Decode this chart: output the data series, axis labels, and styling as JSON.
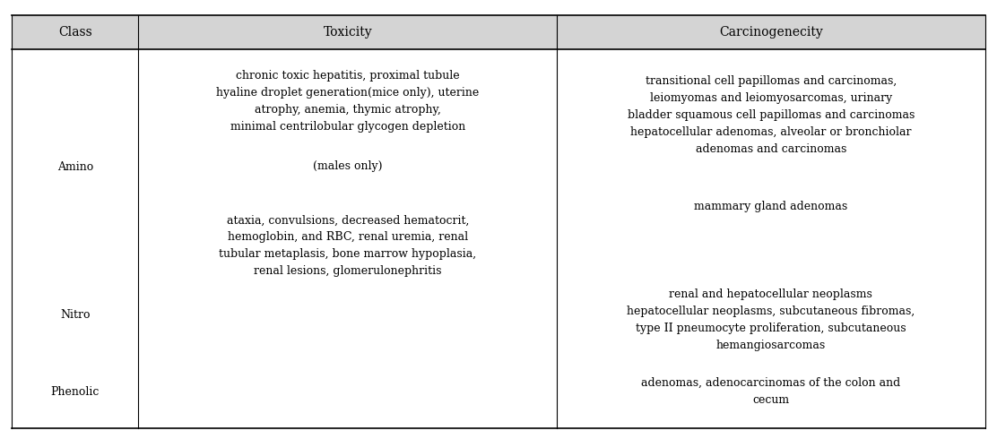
{
  "headers": [
    "Class",
    "Toxicity",
    "Carcinogenecity"
  ],
  "header_bg": "#d4d4d4",
  "bg_color": "#ffffff",
  "border_color": "#000000",
  "font_size": 9.0,
  "header_font_size": 10.0,
  "col_props": [
    0.13,
    0.43,
    0.44
  ],
  "tox_items": [
    [
      "chronic toxic hepatitis, proximal tubule\nhyaline droplet generation(mice only), uterine\natrophy, anemia, thymic atrophy,\nminimal centrilobular glycogen depletion",
      0.77
    ],
    [
      "(males only)",
      0.622
    ],
    [
      "ataxia, convulsions, decreased hematocrit,\nhemoglobin, and RBC, renal uremia, renal\ntubular metaplasis, bone marrow hypoplasia,\nrenal lesions, glomerulonephritis",
      0.44
    ]
  ],
  "carc_items": [
    [
      "transitional cell papillomas and carcinomas,\nleiomyomas and leiomyosarcomas, urinary\nbladder squamous cell papillomas and carcinomas\nhepatocellular adenomas, alveolar or bronchiolar\nadenomas and carcinomas",
      0.738
    ],
    [
      "mammary gland adenomas",
      0.53
    ],
    [
      "renal and hepatocellular neoplasms\nhepatocellular neoplasms, subcutaneous fibromas,\ntype II pneumocyte proliferation, subcutaneous\nhemangiosarcomas",
      0.272
    ],
    [
      "adenomas, adenocarcinomas of the colon and\ncecum",
      0.108
    ]
  ],
  "class_items": [
    [
      "Amino",
      0.62
    ],
    [
      "Nitro",
      0.282
    ],
    [
      "Phenolic",
      0.108
    ]
  ]
}
